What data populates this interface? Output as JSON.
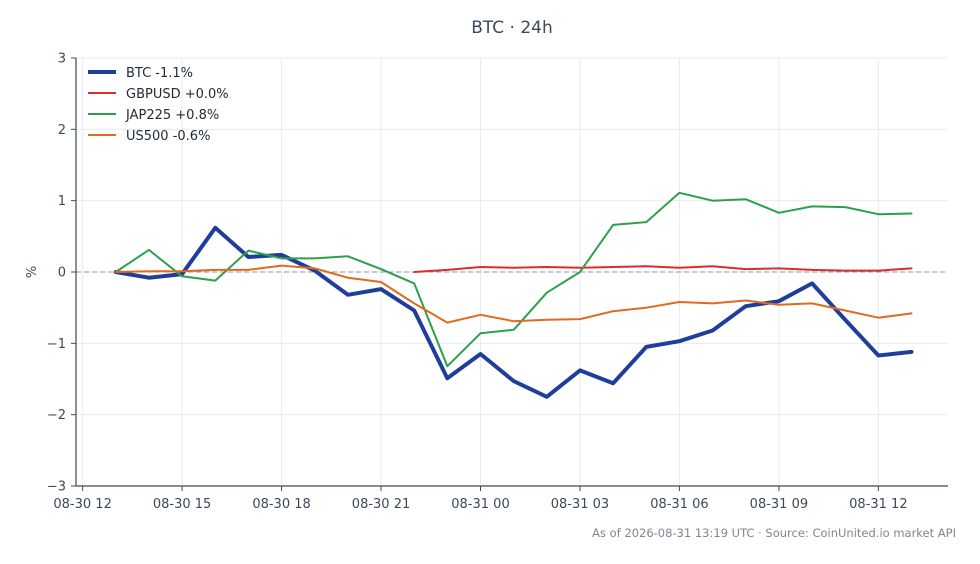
{
  "chart_data": {
    "type": "line",
    "title": "BTC · 24h",
    "xlabel": "",
    "ylabel": "%",
    "ylim": [
      -3,
      3
    ],
    "y_ticks": [
      3,
      2,
      1,
      0,
      -1,
      -2,
      -3
    ],
    "y_tick_labels": [
      "3",
      "2",
      "1",
      "0",
      "−1",
      "−2",
      "−3"
    ],
    "x_ticks": [
      "08-30 12",
      "08-30 15",
      "08-30 18",
      "08-30 21",
      "08-31 00",
      "08-31 03",
      "08-31 06",
      "08-31 09",
      "08-31 12"
    ],
    "x_tick_hours": [
      0,
      3,
      6,
      9,
      12,
      15,
      18,
      21,
      24
    ],
    "x_range_hours": [
      -0.2,
      26.1
    ],
    "grid": true,
    "zero_line": true,
    "legend_position": "top-left",
    "series": [
      {
        "name": "BTC -1.1%",
        "color": "#1f3e9c",
        "width": 4,
        "x": [
          1,
          2,
          3,
          4,
          5,
          6,
          7,
          8,
          9,
          10,
          11,
          12,
          13,
          14,
          15,
          16,
          17,
          18,
          19,
          20,
          21,
          22,
          23,
          24,
          25
        ],
        "y": [
          0.0,
          -0.08,
          -0.03,
          0.62,
          0.21,
          0.24,
          0.02,
          -0.32,
          -0.24,
          -0.54,
          -1.49,
          -1.15,
          -1.53,
          -1.75,
          -1.38,
          -1.56,
          -1.05,
          -0.97,
          -0.82,
          -0.48,
          -0.41,
          -0.16,
          -0.67,
          -1.17,
          -1.12
        ]
      },
      {
        "name": "GBPUSD +0.0%",
        "color": "#d62f2f",
        "width": 2,
        "x": [
          10,
          11,
          12,
          13,
          14,
          15,
          16,
          17,
          18,
          19,
          20,
          21,
          22,
          23,
          24,
          25
        ],
        "y": [
          0.0,
          0.03,
          0.07,
          0.06,
          0.07,
          0.06,
          0.07,
          0.08,
          0.06,
          0.08,
          0.04,
          0.05,
          0.03,
          0.02,
          0.02,
          0.05
        ]
      },
      {
        "name": "JAP225 +0.8%",
        "color": "#2ca14a",
        "width": 2,
        "x": [
          1,
          2,
          3,
          4,
          5,
          6,
          7,
          8,
          9,
          10,
          11,
          12,
          13,
          14,
          15,
          16,
          17,
          18,
          19,
          20,
          21,
          22,
          23,
          24,
          25
        ],
        "y": [
          0.0,
          0.31,
          -0.06,
          -0.12,
          0.3,
          0.19,
          0.19,
          0.22,
          0.04,
          -0.16,
          -1.32,
          -0.86,
          -0.81,
          -0.29,
          0.0,
          0.66,
          0.7,
          1.11,
          1.0,
          1.02,
          0.83,
          0.92,
          0.91,
          0.81,
          0.82
        ]
      },
      {
        "name": "US500 -0.6%",
        "color": "#e26a1f",
        "width": 2,
        "x": [
          1,
          2,
          3,
          4,
          5,
          6,
          7,
          8,
          9,
          10,
          11,
          12,
          13,
          14,
          15,
          16,
          17,
          18,
          19,
          20,
          21,
          22,
          23,
          24,
          25
        ],
        "y": [
          0.0,
          0.01,
          0.01,
          0.03,
          0.03,
          0.09,
          0.05,
          -0.08,
          -0.14,
          -0.44,
          -0.71,
          -0.6,
          -0.69,
          -0.67,
          -0.66,
          -0.55,
          -0.5,
          -0.42,
          -0.44,
          -0.4,
          -0.46,
          -0.44,
          -0.54,
          -0.64,
          -0.58
        ]
      }
    ]
  },
  "footer": {
    "note": "As of 2026-08-31 13:19 UTC · Source: CoinUnited.io market API"
  }
}
